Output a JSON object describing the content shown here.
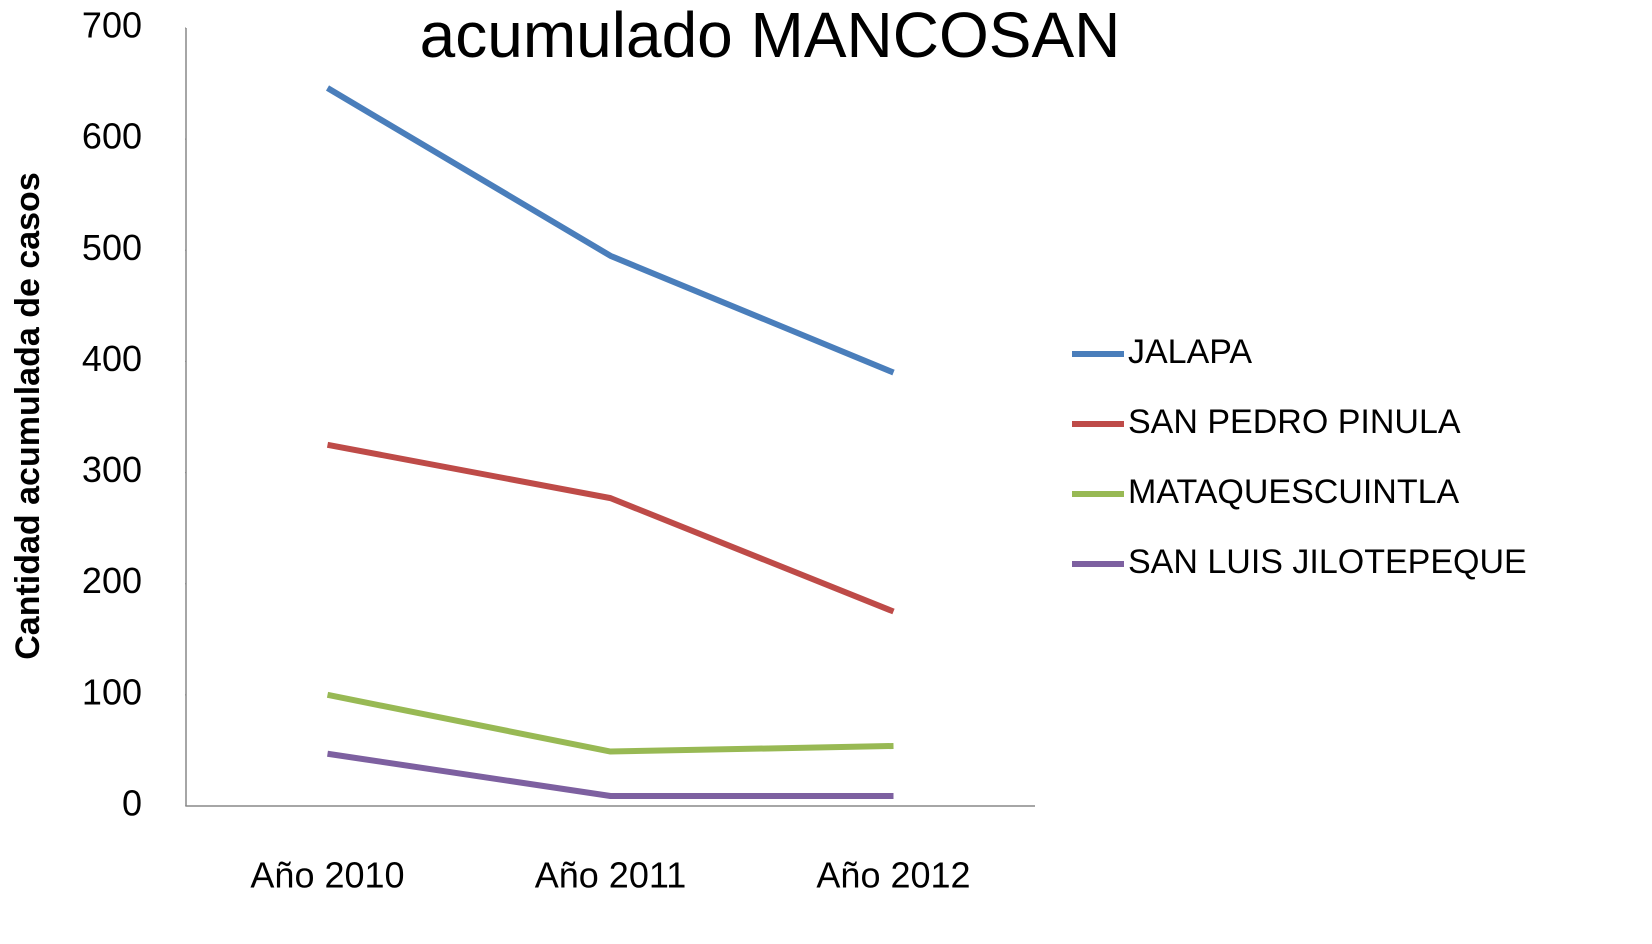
{
  "chart_data": {
    "type": "line",
    "title": "acumulado MANCOSAN",
    "y_label": "Cantidad acumulada de casos",
    "categories": [
      "Año 2010",
      "Año 2011",
      "Año 2012"
    ],
    "series": [
      {
        "name": "JALAPA",
        "color": "#4a7ebb",
        "values": [
          646,
          495,
          390
        ]
      },
      {
        "name": "SAN PEDRO PINULA",
        "color": "#be4b48",
        "values": [
          325,
          277,
          175
        ]
      },
      {
        "name": "MATAQUESCUINTLA",
        "color": "#98b954",
        "values": [
          100,
          49,
          54
        ]
      },
      {
        "name": "SAN LUIS JILOTEPEQUE",
        "color": "#7d60a0",
        "values": [
          47,
          9,
          9
        ]
      }
    ],
    "ylim": [
      0,
      700
    ],
    "yticks": [
      0,
      100,
      200,
      300,
      400,
      500,
      600,
      700
    ],
    "grid": false,
    "legend": "right"
  }
}
